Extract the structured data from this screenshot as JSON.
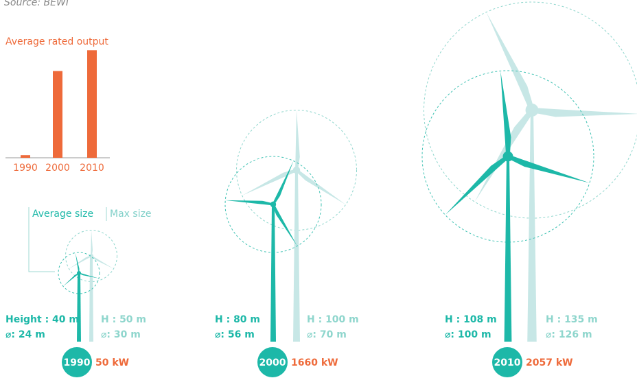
{
  "source": "Source: BEWI",
  "chart_data": {
    "type": "bar",
    "title": "Average rated output",
    "categories": [
      "1990",
      "2000",
      "2010"
    ],
    "values": [
      50,
      1660,
      2057
    ],
    "value_labels": [
      "50 kW",
      "1660 kW",
      "2057 kW"
    ],
    "color": "#ee6a3a",
    "ylim": [
      0,
      2100
    ]
  },
  "legend": {
    "average": "Average size",
    "max": "Max size"
  },
  "turbines": [
    {
      "average": {
        "height": 40,
        "diameter": 24,
        "height_label": "Height : 40 m",
        "diameter_label": "⌀: 24 m"
      },
      "max": {
        "height": 50,
        "diameter": 30,
        "height_label": "H : 50 m",
        "diameter_label": "⌀: 30 m"
      }
    },
    {
      "average": {
        "height": 80,
        "diameter": 56,
        "height_label": "H : 80 m",
        "diameter_label": "⌀: 56 m"
      },
      "max": {
        "height": 100,
        "diameter": 70,
        "height_label": "H : 100 m",
        "diameter_label": "⌀: 70 m"
      }
    },
    {
      "average": {
        "height": 108,
        "diameter": 100,
        "height_label": "H : 108 m",
        "diameter_label": "⌀: 100 m"
      },
      "max": {
        "height": 135,
        "diameter": 126,
        "height_label": "H : 135 m",
        "diameter_label": "⌀: 126 m"
      }
    }
  ]
}
